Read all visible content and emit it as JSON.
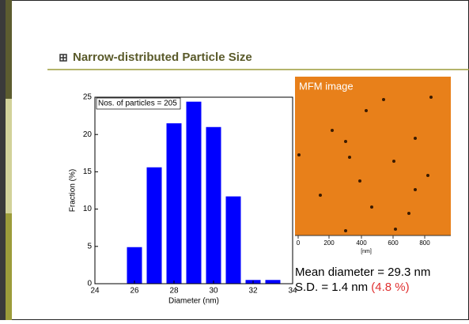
{
  "slide": {
    "title": "Narrow-distributed Particle Size",
    "mean": "Mean diameter = 29.3 nm",
    "sd": "S.D. = 1.4 nm",
    "sd_pct": "(4.8 %)"
  },
  "mfm_image": {
    "label": "MFM image",
    "ticks": [
      "0",
      "200",
      "400",
      "600",
      "800"
    ],
    "unit": "[nm]"
  },
  "chart_data": {
    "type": "bar",
    "x": [
      26,
      27,
      28,
      29,
      30,
      31,
      32,
      33
    ],
    "values": [
      4.9,
      15.6,
      21.5,
      24.4,
      21.0,
      11.7,
      0.5,
      0.5
    ],
    "color": "#0000ff",
    "xlim": [
      24,
      34
    ],
    "xticks": [
      24,
      26,
      28,
      30,
      32,
      34
    ],
    "ylim": [
      0,
      25
    ],
    "yticks": [
      0,
      5,
      10,
      15,
      20,
      25
    ],
    "x_label": "Diameter (nm)",
    "y_label": "Fraction (%)",
    "annotation": "Nos. of particles = 205"
  }
}
